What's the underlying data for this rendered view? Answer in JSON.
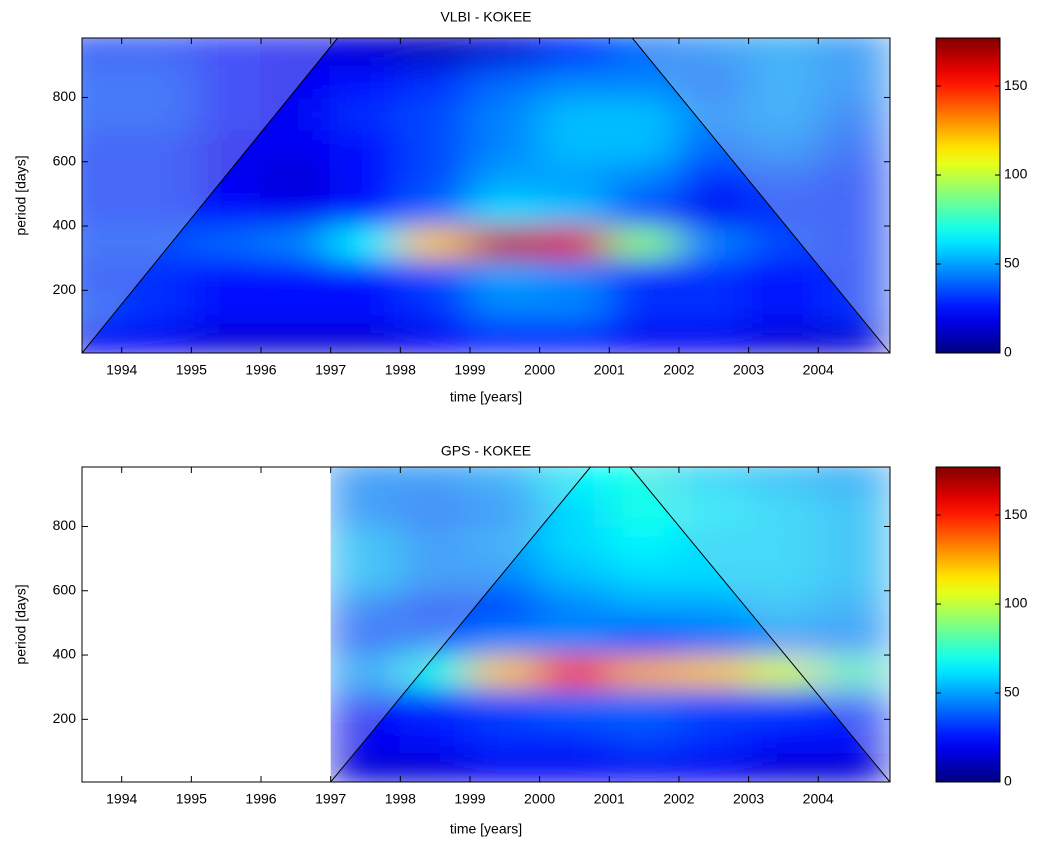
{
  "chart_data": [
    {
      "type": "heatmap",
      "title": "VLBI - KOKEE",
      "x_label": "time [years]",
      "y_label": "period [days]",
      "xlim": [
        1993.43,
        2005.03
      ],
      "ylim": [
        5,
        985
      ],
      "xticks": [
        1994,
        1995,
        1996,
        1997,
        1998,
        1999,
        2000,
        2001,
        2002,
        2003,
        2004
      ],
      "yticks": [
        200,
        400,
        600,
        800
      ],
      "clim": [
        0,
        177
      ],
      "cticks": [
        0,
        50,
        100,
        150
      ],
      "x": [
        1993.5,
        1994.5,
        1995.5,
        1996.5,
        1997.5,
        1998.5,
        1999.5,
        2000.5,
        2001.5,
        2002.5,
        2003.5,
        2004.5
      ],
      "y": [
        50,
        150,
        250,
        350,
        450,
        550,
        650,
        750,
        850,
        950
      ],
      "z": [
        [
          20,
          20,
          15,
          15,
          15,
          20,
          25,
          25,
          20,
          20,
          15,
          15
        ],
        [
          35,
          30,
          25,
          25,
          25,
          30,
          45,
          45,
          30,
          30,
          25,
          30
        ],
        [
          30,
          30,
          25,
          25,
          25,
          35,
          50,
          45,
          30,
          30,
          25,
          30
        ],
        [
          35,
          35,
          40,
          45,
          65,
          120,
          165,
          160,
          90,
          45,
          35,
          30
        ],
        [
          30,
          30,
          25,
          20,
          25,
          40,
          60,
          55,
          35,
          20,
          30,
          30
        ],
        [
          30,
          30,
          20,
          15,
          25,
          35,
          50,
          50,
          45,
          30,
          35,
          30
        ],
        [
          30,
          30,
          20,
          20,
          25,
          35,
          45,
          55,
          55,
          40,
          45,
          35
        ],
        [
          35,
          35,
          25,
          20,
          30,
          35,
          45,
          55,
          55,
          45,
          50,
          40
        ],
        [
          35,
          35,
          25,
          20,
          25,
          30,
          40,
          45,
          45,
          40,
          50,
          45
        ],
        [
          30,
          30,
          25,
          20,
          15,
          10,
          15,
          30,
          40,
          45,
          50,
          45
        ]
      ],
      "coi": {
        "x": [
          1993.43,
          1997.1,
          2001.33,
          2005.03
        ],
        "y": [
          5,
          985,
          985,
          5
        ]
      }
    },
    {
      "type": "heatmap",
      "title": "GPS - KOKEE",
      "x_label": "time [years]",
      "y_label": "period [days]",
      "xlim": [
        1993.43,
        2005.03
      ],
      "ylim": [
        5,
        985
      ],
      "xticks": [
        1994,
        1995,
        1996,
        1997,
        1998,
        1999,
        2000,
        2001,
        2002,
        2003,
        2004
      ],
      "yticks": [
        200,
        400,
        600,
        800
      ],
      "clim": [
        0,
        177
      ],
      "cticks": [
        0,
        50,
        100,
        150
      ],
      "x": [
        1993.5,
        1994.5,
        1995.5,
        1996.5,
        1997.5,
        1998.5,
        1999.5,
        2000.5,
        2001.5,
        2002.5,
        2003.5,
        2004.5
      ],
      "y": [
        50,
        150,
        250,
        350,
        450,
        550,
        650,
        750,
        850,
        950
      ],
      "z": [
        [
          null,
          null,
          null,
          null,
          15,
          15,
          20,
          20,
          20,
          20,
          15,
          15
        ],
        [
          null,
          null,
          null,
          null,
          20,
          25,
          30,
          30,
          35,
          30,
          25,
          25
        ],
        [
          null,
          null,
          null,
          null,
          25,
          30,
          35,
          40,
          40,
          35,
          35,
          30
        ],
        [
          null,
          null,
          null,
          null,
          50,
          70,
          120,
          145,
          125,
          120,
          105,
          80
        ],
        [
          null,
          null,
          null,
          null,
          35,
          40,
          45,
          45,
          35,
          40,
          45,
          45
        ],
        [
          null,
          null,
          null,
          null,
          40,
          30,
          35,
          45,
          50,
          50,
          55,
          50
        ],
        [
          null,
          null,
          null,
          null,
          55,
          45,
          45,
          55,
          60,
          60,
          60,
          55
        ],
        [
          null,
          null,
          null,
          null,
          55,
          45,
          50,
          60,
          65,
          60,
          60,
          55
        ],
        [
          null,
          null,
          null,
          null,
          45,
          40,
          45,
          60,
          70,
          65,
          60,
          55
        ],
        [
          null,
          null,
          null,
          null,
          45,
          45,
          50,
          65,
          70,
          60,
          55,
          50
        ]
      ],
      "coi": {
        "x": [
          1997.0,
          2000.73,
          2001.3,
          2005.03
        ],
        "y": [
          5,
          985,
          985,
          5
        ]
      }
    }
  ]
}
